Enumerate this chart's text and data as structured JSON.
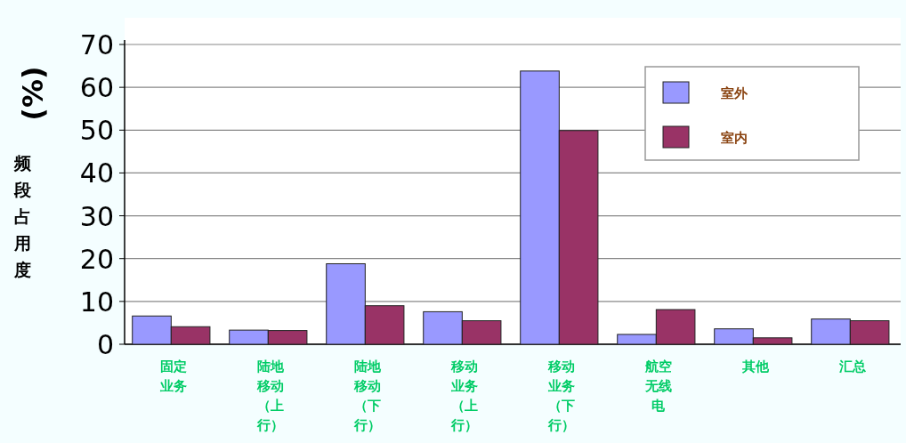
{
  "chart_data": {
    "type": "bar",
    "ylabel": "(%)",
    "annotations": [
      "频段占用度"
    ],
    "categories": [
      "固定业务",
      "陆地移动（上行）",
      "陆地移动（下行）",
      "移动业务（上行）",
      "移动业务（下行）",
      "航空无线电",
      "其他",
      "汇总"
    ],
    "series": [
      {
        "name": "室外",
        "color": "#9999ff",
        "values": [
          6.6,
          3.3,
          18.8,
          7.6,
          63.8,
          2.3,
          3.6,
          5.9
        ]
      },
      {
        "name": "室内",
        "color": "#993366",
        "values": [
          4.1,
          3.2,
          9.0,
          5.5,
          49.9,
          8.1,
          1.5,
          5.5
        ]
      }
    ],
    "ylim": [
      0,
      70
    ],
    "yticks": [
      0,
      10,
      20,
      30,
      40,
      50,
      60,
      70
    ],
    "grid": "y",
    "legend": "top right"
  }
}
